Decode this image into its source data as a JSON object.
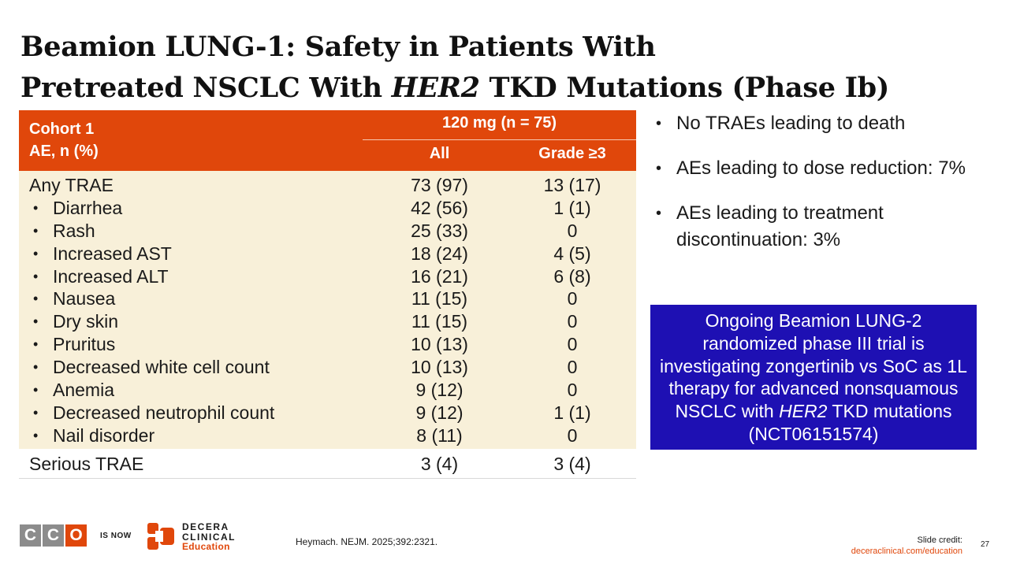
{
  "title": {
    "line1": "Beamion LUNG-1: Safety in Patients With",
    "line2_pre": "Pretreated NSCLC With ",
    "line2_italic": "HER2",
    "line2_post": " TKD Mutations (Phase Ib)"
  },
  "table": {
    "header": {
      "row_label_line1": "Cohort 1",
      "row_label_line2": "AE, n (%)",
      "dose": "120 mg (n = 75)",
      "col_all": "All",
      "col_grade3": "Grade ≥3"
    },
    "rows": [
      {
        "label": "Any TRAE",
        "all": "73 (97)",
        "g3": "13 (17)"
      },
      {
        "label": "Diarrhea",
        "all": "42 (56)",
        "g3": "1 (1)"
      },
      {
        "label": "Rash",
        "all": "25 (33)",
        "g3": "0"
      },
      {
        "label": "Increased AST",
        "all": "18 (24)",
        "g3": "4 (5)"
      },
      {
        "label": "Increased ALT",
        "all": "16 (21)",
        "g3": "6 (8)"
      },
      {
        "label": "Nausea",
        "all": "11 (15)",
        "g3": "0"
      },
      {
        "label": "Dry skin",
        "all": "11 (15)",
        "g3": "0"
      },
      {
        "label": "Pruritus",
        "all": "10 (13)",
        "g3": "0"
      },
      {
        "label": "Decreased white cell count",
        "all": "10 (13)",
        "g3": "0"
      },
      {
        "label": "Anemia",
        "all": "9 (12)",
        "g3": "0"
      },
      {
        "label": "Decreased neutrophil count",
        "all": "9 (12)",
        "g3": "1 (1)"
      },
      {
        "label": "Nail disorder",
        "all": "8 (11)",
        "g3": "0"
      }
    ],
    "footer": {
      "label": "Serious TRAE",
      "all": "3 (4)",
      "g3": "3 (4)"
    }
  },
  "bullets": [
    "No TRAEs leading to death",
    "AEs leading to dose reduction: 7%",
    "AEs leading to treatment discontinuation: 3%"
  ],
  "callout": {
    "pre": "Ongoing Beamion LUNG-2 randomized phase III trial is investigating zongertinib vs SoC as 1L therapy for advanced nonsquamous NSCLC with ",
    "italic": "HER2",
    "post": " TKD mutations (NCT06151574)"
  },
  "footer": {
    "cco_letters": [
      "C",
      "C",
      "O"
    ],
    "is_now": "IS NOW",
    "decera_line1": "DECERA",
    "decera_line2": "CLINICAL",
    "decera_line3": "Education",
    "citation": "Heymach. NEJM. 2025;392:2321.",
    "credit_label": "Slide credit:",
    "credit_url": "deceraclinical.com/education",
    "page_number": "27"
  },
  "colors": {
    "accent": "#e0470b",
    "table_body": "#f8f0d9",
    "callout": "#1e10b3"
  }
}
